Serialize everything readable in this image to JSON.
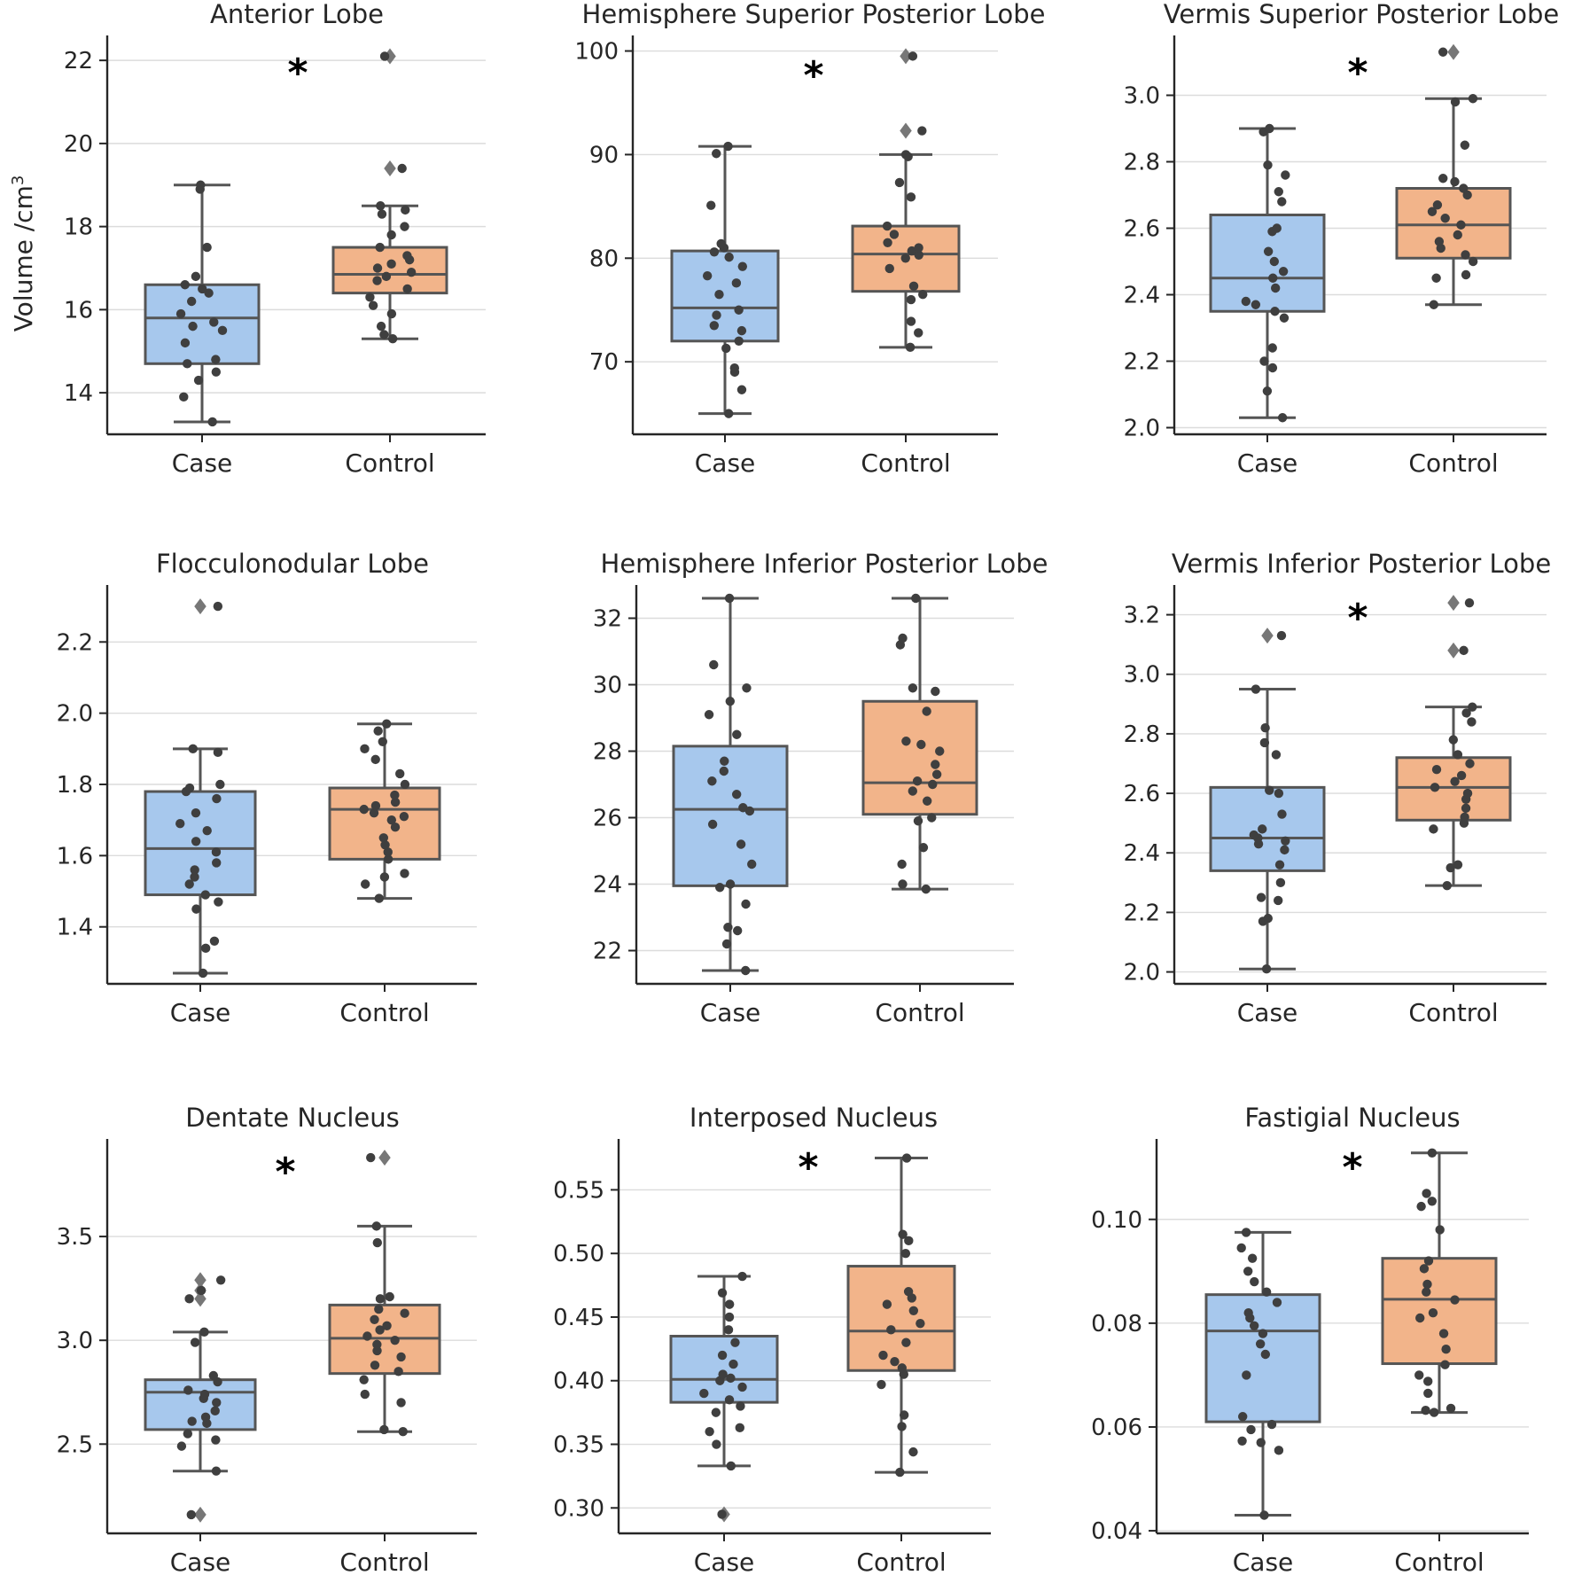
{
  "figure": {
    "ylabel": "Volume /cm",
    "ylabel_superscript": "3"
  },
  "colors": {
    "case": "#a7c8ed",
    "control": "#f2b48a"
  },
  "chart_data": [
    {
      "type": "box",
      "title": "Anterior Lobe",
      "categories": [
        "Case",
        "Control"
      ],
      "yticks": [
        "14",
        "16",
        "18",
        "20",
        "22"
      ],
      "ylim": [
        13,
        22.6
      ],
      "significant": true,
      "series": [
        {
          "name": "Case",
          "q1": 14.7,
          "median": 15.8,
          "q3": 16.6,
          "whisker_low": 13.3,
          "whisker_high": 19.0,
          "fliers": [],
          "points": [
            13.3,
            13.9,
            14.3,
            14.5,
            14.7,
            14.8,
            15.2,
            15.5,
            15.6,
            15.7,
            15.9,
            16.2,
            16.4,
            16.5,
            16.6,
            16.8,
            17.5,
            18.9,
            19.0
          ]
        },
        {
          "name": "Control",
          "q1": 16.4,
          "median": 16.85,
          "q3": 17.5,
          "whisker_low": 15.3,
          "whisker_high": 18.5,
          "fliers": [
            19.4,
            22.1
          ],
          "points": [
            15.3,
            15.4,
            15.6,
            15.9,
            16.1,
            16.3,
            16.5,
            16.7,
            16.8,
            16.9,
            17.0,
            17.1,
            17.2,
            17.3,
            17.5,
            17.8,
            18.0,
            18.3,
            18.4,
            18.5,
            19.4,
            22.1
          ]
        }
      ]
    },
    {
      "type": "box",
      "title": "Hemisphere Superior Posterior Lobe",
      "categories": [
        "Case",
        "Control"
      ],
      "yticks": [
        "70",
        "80",
        "90",
        "100"
      ],
      "ylim": [
        63,
        101.5
      ],
      "significant": true,
      "series": [
        {
          "name": "Case",
          "q1": 72.0,
          "median": 75.2,
          "q3": 80.7,
          "whisker_low": 65.0,
          "whisker_high": 90.8,
          "fliers": [],
          "points": [
            65.0,
            67.3,
            69.0,
            69.4,
            71.3,
            72.0,
            73.0,
            73.5,
            74.5,
            75.0,
            76.5,
            77.6,
            78.3,
            79.2,
            80.1,
            80.6,
            81.0,
            81.4,
            85.1,
            90.1,
            90.8
          ]
        },
        {
          "name": "Control",
          "q1": 76.8,
          "median": 80.4,
          "q3": 83.1,
          "whisker_low": 71.4,
          "whisker_high": 90.0,
          "fliers": [
            92.3,
            99.5
          ],
          "points": [
            71.4,
            72.8,
            73.9,
            76.0,
            76.5,
            77.3,
            79.0,
            80.0,
            80.3,
            80.7,
            81.0,
            81.5,
            82.3,
            83.1,
            85.9,
            87.3,
            89.8,
            90.0,
            92.3,
            99.5
          ]
        }
      ]
    },
    {
      "type": "box",
      "title": "Vermis Superior Posterior Lobe",
      "categories": [
        "Case",
        "Control"
      ],
      "yticks": [
        "2.0",
        "2.2",
        "2.4",
        "2.6",
        "2.8",
        "3.0"
      ],
      "ylim": [
        1.98,
        3.18
      ],
      "significant": true,
      "series": [
        {
          "name": "Case",
          "q1": 2.35,
          "median": 2.45,
          "q3": 2.64,
          "whisker_low": 2.03,
          "whisker_high": 2.9,
          "fliers": [],
          "points": [
            2.03,
            2.11,
            2.18,
            2.2,
            2.24,
            2.33,
            2.35,
            2.37,
            2.38,
            2.42,
            2.45,
            2.47,
            2.5,
            2.53,
            2.59,
            2.6,
            2.68,
            2.71,
            2.76,
            2.79,
            2.89,
            2.9
          ]
        },
        {
          "name": "Control",
          "q1": 2.51,
          "median": 2.61,
          "q3": 2.72,
          "whisker_low": 2.37,
          "whisker_high": 2.99,
          "fliers": [
            3.13
          ],
          "points": [
            2.37,
            2.45,
            2.46,
            2.5,
            2.52,
            2.54,
            2.56,
            2.58,
            2.61,
            2.63,
            2.65,
            2.67,
            2.7,
            2.72,
            2.74,
            2.75,
            2.85,
            2.98,
            2.99,
            3.13
          ]
        }
      ]
    },
    {
      "type": "box",
      "title": "Flocculonodular Lobe",
      "categories": [
        "Case",
        "Control"
      ],
      "yticks": [
        "1.4",
        "1.6",
        "1.8",
        "2.0",
        "2.2"
      ],
      "ylim": [
        1.24,
        2.36
      ],
      "significant": false,
      "series": [
        {
          "name": "Case",
          "q1": 1.49,
          "median": 1.62,
          "q3": 1.78,
          "whisker_low": 1.27,
          "whisker_high": 1.9,
          "fliers": [
            2.3
          ],
          "points": [
            1.27,
            1.34,
            1.36,
            1.45,
            1.47,
            1.49,
            1.52,
            1.54,
            1.56,
            1.58,
            1.61,
            1.64,
            1.67,
            1.69,
            1.72,
            1.76,
            1.78,
            1.79,
            1.8,
            1.89,
            1.9,
            2.3
          ]
        },
        {
          "name": "Control",
          "q1": 1.59,
          "median": 1.73,
          "q3": 1.79,
          "whisker_low": 1.48,
          "whisker_high": 1.97,
          "fliers": [],
          "points": [
            1.48,
            1.52,
            1.54,
            1.55,
            1.59,
            1.61,
            1.63,
            1.65,
            1.68,
            1.7,
            1.71,
            1.72,
            1.73,
            1.74,
            1.75,
            1.77,
            1.8,
            1.83,
            1.87,
            1.9,
            1.92,
            1.95,
            1.97
          ]
        }
      ]
    },
    {
      "type": "box",
      "title": "Hemisphere Inferior Posterior Lobe",
      "categories": [
        "Case",
        "Control"
      ],
      "yticks": [
        "22",
        "24",
        "26",
        "28",
        "30",
        "32"
      ],
      "ylim": [
        21.0,
        33.0
      ],
      "significant": false,
      "series": [
        {
          "name": "Case",
          "q1": 23.95,
          "median": 26.25,
          "q3": 28.15,
          "whisker_low": 21.4,
          "whisker_high": 32.6,
          "fliers": [],
          "points": [
            21.4,
            22.2,
            22.6,
            22.7,
            23.4,
            23.9,
            24.0,
            24.6,
            25.2,
            25.8,
            26.2,
            26.3,
            26.7,
            27.1,
            27.4,
            27.7,
            28.5,
            29.1,
            29.5,
            29.9,
            30.6,
            32.6
          ]
        },
        {
          "name": "Control",
          "q1": 26.1,
          "median": 27.05,
          "q3": 29.5,
          "whisker_low": 23.85,
          "whisker_high": 32.6,
          "fliers": [],
          "points": [
            23.85,
            24.0,
            24.6,
            25.1,
            25.9,
            26.0,
            26.5,
            26.8,
            27.0,
            27.1,
            27.3,
            27.6,
            28.0,
            28.2,
            28.3,
            29.2,
            29.8,
            29.9,
            31.2,
            31.4,
            32.6
          ]
        }
      ]
    },
    {
      "type": "box",
      "title": "Vermis Inferior Posterior Lobe",
      "categories": [
        "Case",
        "Control"
      ],
      "yticks": [
        "2.0",
        "2.2",
        "2.4",
        "2.6",
        "2.8",
        "3.0",
        "3.2"
      ],
      "ylim": [
        1.96,
        3.3
      ],
      "significant": true,
      "series": [
        {
          "name": "Case",
          "q1": 2.34,
          "median": 2.45,
          "q3": 2.62,
          "whisker_low": 2.01,
          "whisker_high": 2.95,
          "fliers": [
            3.13
          ],
          "points": [
            2.01,
            2.17,
            2.18,
            2.24,
            2.25,
            2.3,
            2.36,
            2.41,
            2.43,
            2.44,
            2.45,
            2.46,
            2.48,
            2.53,
            2.6,
            2.61,
            2.73,
            2.77,
            2.82,
            2.95,
            3.13
          ]
        },
        {
          "name": "Control",
          "q1": 2.51,
          "median": 2.62,
          "q3": 2.72,
          "whisker_low": 2.29,
          "whisker_high": 2.89,
          "fliers": [
            3.08,
            3.24
          ],
          "points": [
            2.29,
            2.35,
            2.36,
            2.48,
            2.5,
            2.52,
            2.55,
            2.58,
            2.6,
            2.62,
            2.64,
            2.66,
            2.68,
            2.7,
            2.73,
            2.78,
            2.84,
            2.87,
            2.89,
            3.08,
            3.24
          ]
        }
      ]
    },
    {
      "type": "box",
      "title": "Dentate Nucleus",
      "categories": [
        "Case",
        "Control"
      ],
      "yticks": [
        "2.5",
        "3.0",
        "3.5"
      ],
      "ylim": [
        2.07,
        3.97
      ],
      "significant": true,
      "series": [
        {
          "name": "Case",
          "q1": 2.57,
          "median": 2.75,
          "q3": 2.81,
          "whisker_low": 2.37,
          "whisker_high": 3.04,
          "fliers": [
            2.16,
            3.2,
            3.24,
            3.29
          ],
          "points": [
            2.16,
            2.37,
            2.49,
            2.52,
            2.55,
            2.6,
            2.61,
            2.63,
            2.66,
            2.7,
            2.72,
            2.74,
            2.76,
            2.8,
            2.83,
            2.99,
            3.04,
            3.2,
            3.24,
            3.29
          ]
        },
        {
          "name": "Control",
          "q1": 2.84,
          "median": 3.01,
          "q3": 3.17,
          "whisker_low": 2.56,
          "whisker_high": 3.55,
          "fliers": [
            3.88
          ],
          "points": [
            2.56,
            2.57,
            2.7,
            2.74,
            2.81,
            2.85,
            2.88,
            2.92,
            2.95,
            2.98,
            3.0,
            3.02,
            3.05,
            3.07,
            3.1,
            3.13,
            3.15,
            3.2,
            3.21,
            3.47,
            3.55,
            3.88
          ]
        }
      ]
    },
    {
      "type": "box",
      "title": "Interposed Nucleus",
      "categories": [
        "Case",
        "Control"
      ],
      "yticks": [
        "0.30",
        "0.35",
        "0.40",
        "0.45",
        "0.50",
        "0.55"
      ],
      "ylim": [
        0.28,
        0.59
      ],
      "significant": true,
      "series": [
        {
          "name": "Case",
          "q1": 0.383,
          "median": 0.401,
          "q3": 0.435,
          "whisker_low": 0.333,
          "whisker_high": 0.482,
          "fliers": [
            0.295
          ],
          "points": [
            0.295,
            0.333,
            0.35,
            0.36,
            0.363,
            0.375,
            0.38,
            0.385,
            0.39,
            0.395,
            0.4,
            0.402,
            0.405,
            0.413,
            0.42,
            0.43,
            0.44,
            0.45,
            0.46,
            0.469,
            0.482
          ]
        },
        {
          "name": "Control",
          "q1": 0.408,
          "median": 0.439,
          "q3": 0.49,
          "whisker_low": 0.328,
          "whisker_high": 0.575,
          "fliers": [],
          "points": [
            0.328,
            0.344,
            0.364,
            0.373,
            0.397,
            0.405,
            0.41,
            0.415,
            0.42,
            0.43,
            0.44,
            0.445,
            0.455,
            0.46,
            0.465,
            0.47,
            0.5,
            0.51,
            0.515,
            0.575
          ]
        }
      ]
    },
    {
      "type": "box",
      "title": "Fastigial Nucleus",
      "categories": [
        "Case",
        "Control"
      ],
      "yticks": [
        "0.04",
        "0.06",
        "0.08",
        "0.10"
      ],
      "ylim": [
        0.0395,
        0.1155
      ],
      "significant": true,
      "series": [
        {
          "name": "Case",
          "q1": 0.061,
          "median": 0.0785,
          "q3": 0.0855,
          "whisker_low": 0.043,
          "whisker_high": 0.0975,
          "fliers": [],
          "points": [
            0.043,
            0.0555,
            0.057,
            0.0573,
            0.0595,
            0.0605,
            0.062,
            0.07,
            0.074,
            0.076,
            0.078,
            0.0795,
            0.081,
            0.082,
            0.084,
            0.086,
            0.088,
            0.09,
            0.0925,
            0.0945,
            0.0975
          ]
        },
        {
          "name": "Control",
          "q1": 0.0722,
          "median": 0.0846,
          "q3": 0.0925,
          "whisker_low": 0.0628,
          "whisker_high": 0.1128,
          "fliers": [],
          "points": [
            0.0628,
            0.0632,
            0.0636,
            0.0665,
            0.0688,
            0.07,
            0.072,
            0.075,
            0.078,
            0.081,
            0.082,
            0.0845,
            0.086,
            0.0875,
            0.0905,
            0.092,
            0.098,
            0.1025,
            0.1035,
            0.105,
            0.1128
          ]
        }
      ]
    }
  ]
}
